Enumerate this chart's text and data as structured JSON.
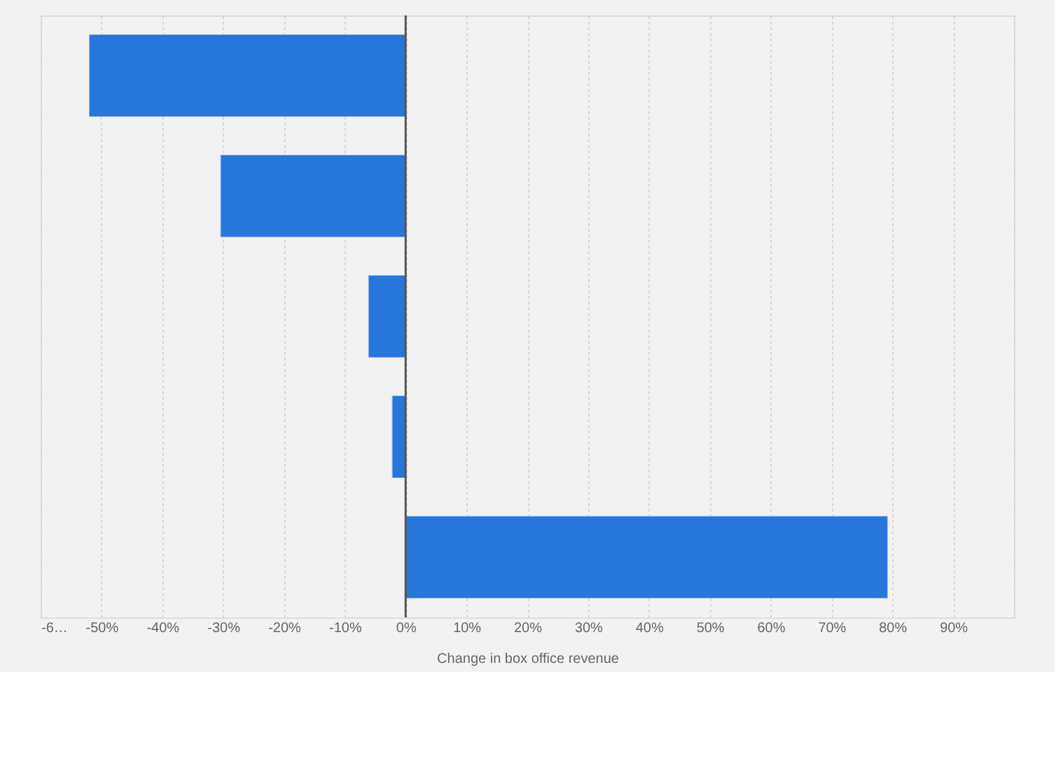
{
  "chart_data": {
    "type": "bar",
    "orientation": "horizontal",
    "xlabel": "Change in box office revenue",
    "categories": [
      null,
      null,
      null,
      null,
      null
    ],
    "values": [
      -52,
      -30.4,
      -6.1,
      -2.2,
      79.2
    ],
    "color": "#2776dc",
    "xlim": [
      -60,
      100
    ],
    "xticks": [
      {
        "value": -60,
        "label": "-6…"
      },
      {
        "value": -50,
        "label": "-50%"
      },
      {
        "value": -40,
        "label": "-40%"
      },
      {
        "value": -30,
        "label": "-30%"
      },
      {
        "value": -20,
        "label": "-20%"
      },
      {
        "value": -10,
        "label": "-10%"
      },
      {
        "value": 0,
        "label": "0%"
      },
      {
        "value": 10,
        "label": "10%"
      },
      {
        "value": 20,
        "label": "20%"
      },
      {
        "value": 30,
        "label": "30%"
      },
      {
        "value": 40,
        "label": "40%"
      },
      {
        "value": 50,
        "label": "50%"
      },
      {
        "value": 60,
        "label": "60%"
      },
      {
        "value": 70,
        "label": "70%"
      },
      {
        "value": 80,
        "label": "80%"
      },
      {
        "value": 90,
        "label": "90%"
      },
      {
        "value": 100,
        "label": null
      }
    ],
    "grid": "x",
    "tick_labels": "x",
    "ref_lines": [
      {
        "axis": "x",
        "value": 0,
        "color": "#555555"
      }
    ]
  }
}
